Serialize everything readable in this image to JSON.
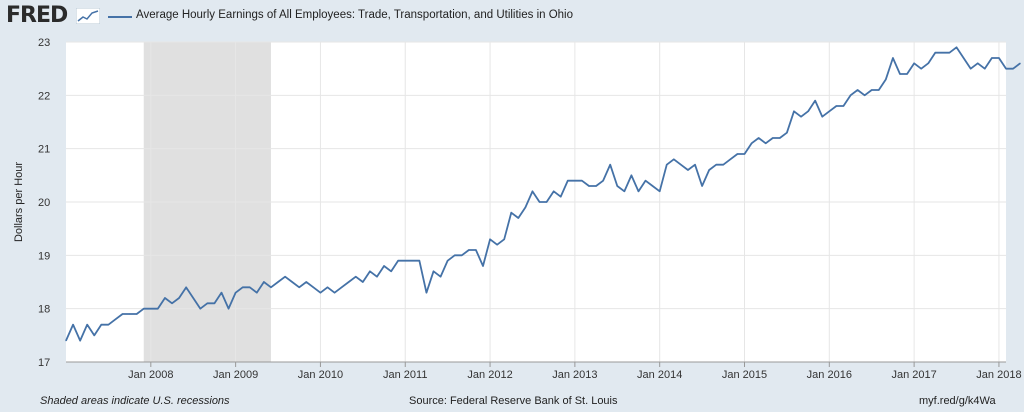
{
  "brand": {
    "logo_text": "FRED",
    "logo_icon": "fred-mini-chart-icon"
  },
  "chart_data": {
    "type": "line",
    "title": "Average Hourly Earnings of All Employees: Trade, Transportation, and Utilities in Ohio",
    "ylabel": "Dollars per Hour",
    "xlabel": "",
    "ylim": [
      17,
      23
    ],
    "yticks": [
      17,
      18,
      19,
      20,
      21,
      22,
      23
    ],
    "x_start": "2007-01",
    "x_end": "2018-02",
    "x_tick_dates": [
      "2008-01",
      "2009-01",
      "2010-01",
      "2011-01",
      "2012-01",
      "2013-01",
      "2014-01",
      "2015-01",
      "2016-01",
      "2017-01",
      "2018-01"
    ],
    "xtick_labels": [
      "Jan 2008",
      "Jan 2009",
      "Jan 2010",
      "Jan 2011",
      "Jan 2012",
      "Jan 2013",
      "Jan 2014",
      "Jan 2015",
      "Jan 2016",
      "Jan 2017",
      "Jan 2018"
    ],
    "recessions": [
      {
        "start": "2007-12",
        "end": "2009-06"
      }
    ],
    "grid": true,
    "legend": "top-left",
    "colors": {
      "series": "#4572a7",
      "recession": "#e0e0e0",
      "plot_bg": "#ffffff",
      "page_bg": "#e1e9f0"
    },
    "series": [
      {
        "name": "Average Hourly Earnings of All Employees: Trade, Transportation, and Utilities in Ohio",
        "start": "2007-01",
        "frequency": "monthly",
        "values": [
          17.4,
          17.7,
          17.4,
          17.7,
          17.5,
          17.7,
          17.7,
          17.8,
          17.9,
          17.9,
          17.9,
          18.0,
          18.0,
          18.0,
          18.2,
          18.1,
          18.2,
          18.4,
          18.2,
          18.0,
          18.1,
          18.1,
          18.3,
          18.0,
          18.3,
          18.4,
          18.4,
          18.3,
          18.5,
          18.4,
          18.5,
          18.6,
          18.5,
          18.4,
          18.5,
          18.4,
          18.3,
          18.4,
          18.3,
          18.4,
          18.5,
          18.6,
          18.5,
          18.7,
          18.6,
          18.8,
          18.7,
          18.9,
          18.9,
          18.9,
          18.9,
          18.3,
          18.7,
          18.6,
          18.9,
          19.0,
          19.0,
          19.1,
          19.1,
          18.8,
          19.3,
          19.2,
          19.3,
          19.8,
          19.7,
          19.9,
          20.2,
          20.0,
          20.0,
          20.2,
          20.1,
          20.4,
          20.4,
          20.4,
          20.3,
          20.3,
          20.4,
          20.7,
          20.3,
          20.2,
          20.5,
          20.2,
          20.4,
          20.3,
          20.2,
          20.7,
          20.8,
          20.7,
          20.6,
          20.7,
          20.3,
          20.6,
          20.7,
          20.7,
          20.8,
          20.9,
          20.9,
          21.1,
          21.2,
          21.1,
          21.2,
          21.2,
          21.3,
          21.7,
          21.6,
          21.7,
          21.9,
          21.6,
          21.7,
          21.8,
          21.8,
          22.0,
          22.1,
          22.0,
          22.1,
          22.1,
          22.3,
          22.7,
          22.4,
          22.4,
          22.6,
          22.5,
          22.6,
          22.8,
          22.8,
          22.8,
          22.9,
          22.7,
          22.5,
          22.6,
          22.5,
          22.7,
          22.7,
          22.5,
          22.5,
          22.6
        ]
      }
    ]
  },
  "footer": {
    "note": "Shaded areas indicate U.S. recessions",
    "source": "Source: Federal Reserve Bank of St. Louis",
    "url": "myf.red/g/k4Wa"
  }
}
